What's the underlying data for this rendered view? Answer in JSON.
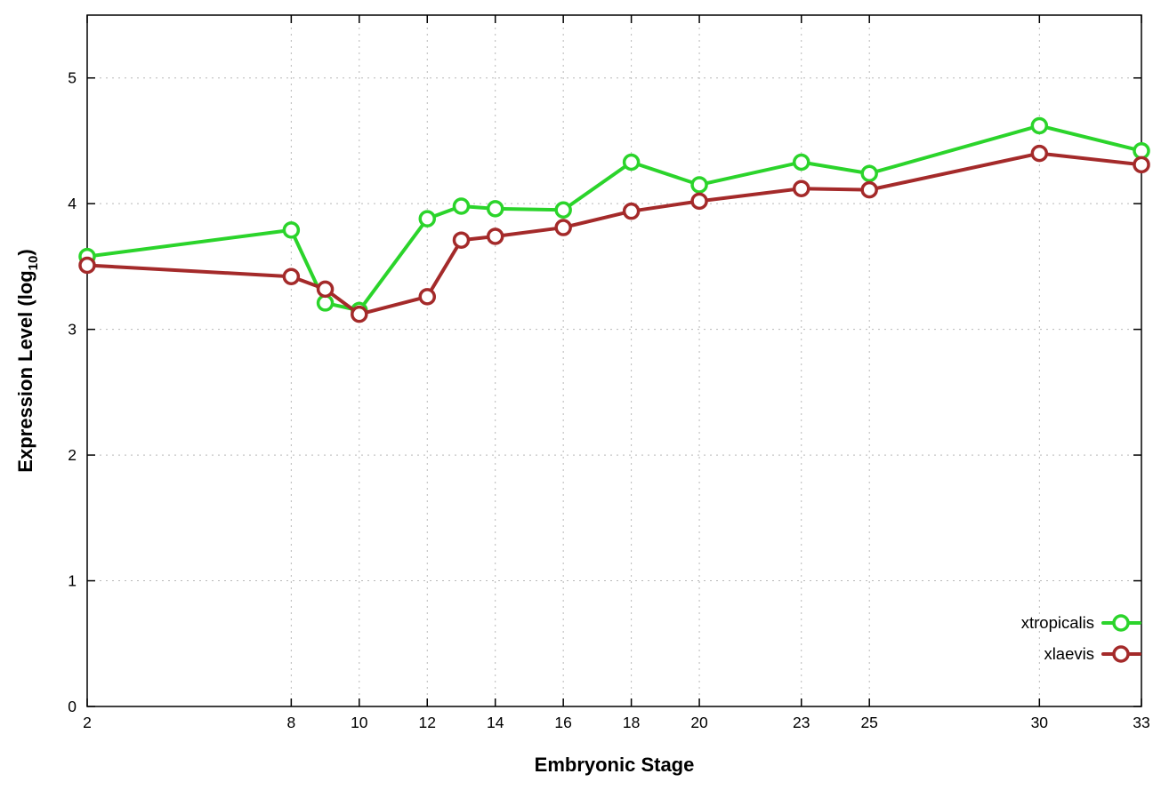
{
  "chart_data": {
    "type": "line",
    "title": "",
    "xlabel": "Embryonic Stage",
    "ylabel": "Expression Level (log10)",
    "ylabel_main": "Expression Level (log",
    "ylabel_sub": "10",
    "ylabel_close": ")",
    "xlim": [
      2,
      33
    ],
    "ylim": [
      0,
      5.5
    ],
    "x_ticks": [
      2,
      8,
      10,
      12,
      14,
      16,
      18,
      20,
      23,
      25,
      30,
      33
    ],
    "y_ticks": [
      0,
      1,
      2,
      3,
      4,
      5
    ],
    "grid": true,
    "grid_color": "#b8b8b8",
    "legend_position": "bottom-right",
    "x": [
      2,
      8,
      9,
      10,
      12,
      13,
      14,
      16,
      18,
      20,
      23,
      25,
      30,
      33
    ],
    "series": [
      {
        "name": "xtropicalis",
        "color": "#2bd42b",
        "values": [
          3.58,
          3.79,
          3.21,
          3.15,
          3.88,
          3.98,
          3.96,
          3.95,
          4.33,
          4.15,
          4.33,
          4.24,
          4.62,
          4.42
        ]
      },
      {
        "name": "xlaevis",
        "color": "#a42a2a",
        "values": [
          3.51,
          3.42,
          3.32,
          3.12,
          3.26,
          3.71,
          3.74,
          3.81,
          3.94,
          4.02,
          4.12,
          4.11,
          4.4,
          4.31
        ]
      }
    ]
  }
}
